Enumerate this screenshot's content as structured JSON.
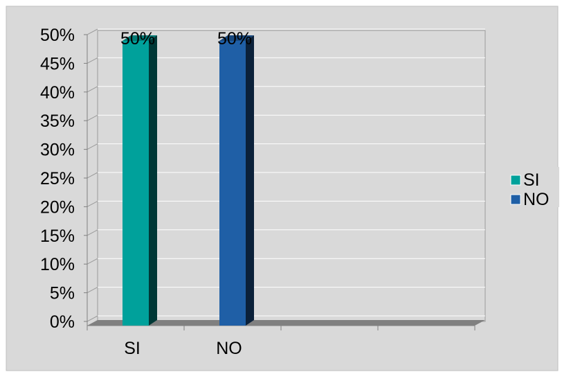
{
  "chart_data": {
    "type": "bar",
    "title": "",
    "xlabel": "",
    "ylabel": "",
    "categories": [
      "SI",
      "NO"
    ],
    "series": [
      {
        "name": "SI",
        "color": "#00A19B",
        "values": [
          0.5,
          null
        ]
      },
      {
        "name": "NO",
        "color": "#1F5FA6",
        "values": [
          null,
          0.5
        ]
      }
    ],
    "data_labels": [
      "50%",
      "50%"
    ],
    "ylim": [
      0,
      0.5
    ],
    "y_ticks": [
      "0%",
      "5%",
      "10%",
      "15%",
      "20%",
      "25%",
      "30%",
      "35%",
      "40%",
      "45%",
      "50%"
    ],
    "grid": true,
    "legend": "right",
    "style": "3d-clustered-column",
    "colors": {
      "plot_bg": "#D9D9D9",
      "wall": "#D9D9D9",
      "gridline": "#FFFFFF",
      "floor": "#808080"
    }
  }
}
